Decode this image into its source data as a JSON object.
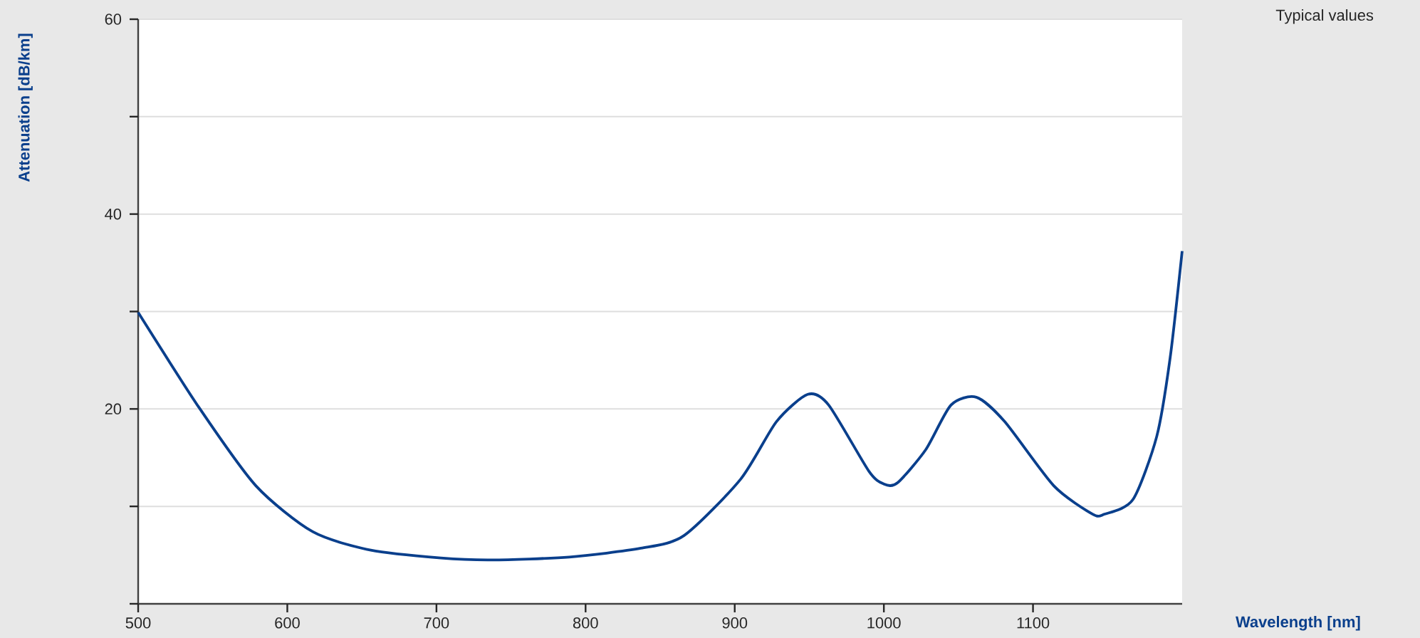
{
  "chart_data": {
    "type": "line",
    "xlabel": "Wavelength [nm]",
    "ylabel": "Attenuation [dB/km]",
    "annotations": [
      "Typical values"
    ],
    "x": [
      500,
      541,
      579,
      617,
      656,
      703,
      737,
      789,
      837,
      866,
      904,
      928,
      949,
      963,
      990,
      1000,
      1009,
      1028,
      1045,
      1062,
      1081,
      1114,
      1140,
      1148,
      1167,
      1183,
      1192,
      1200
    ],
    "series": [
      {
        "color": "#0a3f8c",
        "values": [
          29.9,
          20.1,
          12.1,
          7.4,
          5.5,
          4.7,
          4.5,
          4.8,
          5.7,
          7.0,
          12.8,
          18.7,
          21.5,
          20.4,
          13.6,
          12.3,
          12.4,
          15.8,
          20.4,
          21.2,
          18.7,
          12.1,
          9.2,
          9.2,
          10.7,
          17.2,
          25.3,
          36.2
        ]
      }
    ],
    "xlim": [
      500,
      1200
    ],
    "ylim": [
      0,
      60
    ],
    "xticks": [
      500,
      600,
      700,
      800,
      900,
      1000,
      1100
    ],
    "yticks": [
      {
        "value": 0,
        "label": null
      },
      {
        "value": 10,
        "label": null
      },
      20,
      {
        "value": 30,
        "label": null
      },
      40,
      {
        "value": 50,
        "label": null
      },
      60
    ],
    "grid": "y",
    "marker": "none"
  }
}
